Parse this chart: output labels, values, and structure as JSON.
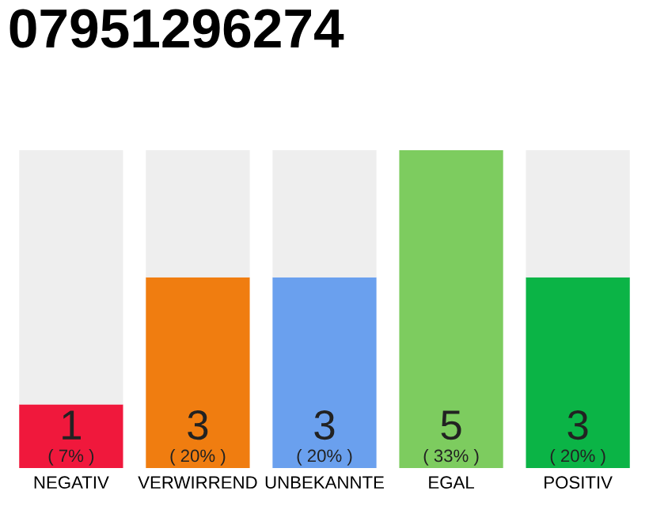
{
  "chart_data": {
    "type": "bar",
    "title": "07951296274",
    "categories": [
      "NEGATIV",
      "VERWIRREND",
      "UNBEKANNTE",
      "EGAL",
      "POSITIV"
    ],
    "stacked": true,
    "ylim": [
      0,
      5
    ],
    "tick_labels": "x",
    "grid": false,
    "series": [
      {
        "colors": [
          "#f0183c",
          "#f07d10",
          "#6aa0ee",
          "#7dcc5f",
          "#0bb446"
        ],
        "values": [
          1,
          3,
          3,
          5,
          3
        ],
        "value_labels": [
          "1\n( 7% )",
          "3\n( 20% )",
          "3\n( 20% )",
          "5\n( 33% )",
          "3\n( 20% )"
        ]
      },
      {
        "color": "#eeeeee",
        "values": [
          4,
          2,
          2,
          0,
          2
        ]
      }
    ]
  }
}
